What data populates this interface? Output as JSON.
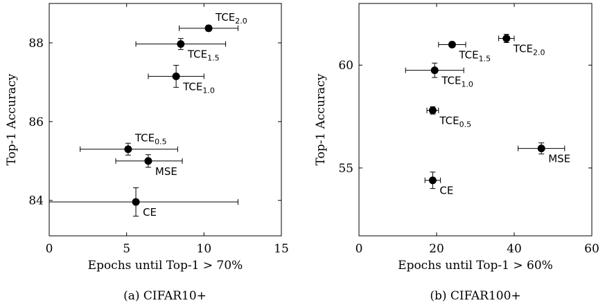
{
  "chart_data": [
    {
      "type": "scatter",
      "caption": "(a) CIFAR10+",
      "xlabel": "Epochs until Top-1 > 70%",
      "ylabel": "Top-1 Accuracy",
      "xlim": [
        0,
        15
      ],
      "ylim": [
        83.1,
        89.0
      ],
      "xticks": [
        "0",
        "5",
        "10",
        "15"
      ],
      "xtick_values": [
        0,
        5,
        10,
        15
      ],
      "yticks": [
        "84",
        "86",
        "88"
      ],
      "ytick_values": [
        84,
        86,
        88
      ],
      "grid": false,
      "points": [
        {
          "base": "TCE",
          "sub": "2.0",
          "x": 10.3,
          "y": 88.37,
          "xerr": [
            8.4,
            12.2
          ],
          "yerr": [
            88.3,
            88.44
          ],
          "label_pos": "above-right"
        },
        {
          "base": "TCE",
          "sub": "1.5",
          "x": 8.5,
          "y": 87.97,
          "xerr": [
            5.6,
            11.4
          ],
          "yerr": [
            87.83,
            88.11
          ],
          "label_pos": "below-right"
        },
        {
          "base": "TCE",
          "sub": "1.0",
          "x": 8.2,
          "y": 87.15,
          "xerr": [
            6.4,
            10.0
          ],
          "yerr": [
            86.87,
            87.43
          ],
          "label_pos": "below-right"
        },
        {
          "base": "TCE",
          "sub": "0.5",
          "x": 5.1,
          "y": 85.3,
          "xerr": [
            2.0,
            8.3
          ],
          "yerr": [
            85.15,
            85.45
          ],
          "label_pos": "above-right"
        },
        {
          "base": "MSE",
          "sub": "",
          "x": 6.4,
          "y": 85.0,
          "xerr": [
            4.3,
            8.6
          ],
          "yerr": [
            84.84,
            85.16
          ],
          "label_pos": "below-right"
        },
        {
          "base": "CE",
          "sub": "",
          "x": 5.6,
          "y": 83.96,
          "xerr": [
            0.0,
            12.2
          ],
          "yerr": [
            83.6,
            84.32
          ],
          "label_pos": "below-right"
        }
      ]
    },
    {
      "type": "scatter",
      "caption": "(b) CIFAR100+",
      "xlabel": "Epochs until Top-1 > 60%",
      "ylabel": "Top-1 Accuracy",
      "xlim": [
        0,
        60
      ],
      "ylim": [
        51.7,
        63.0
      ],
      "xticks": [
        "0",
        "20",
        "40",
        "60"
      ],
      "xtick_values": [
        0,
        20,
        40,
        60
      ],
      "yticks": [
        "55",
        "60"
      ],
      "ytick_values": [
        55,
        60
      ],
      "grid": false,
      "points": [
        {
          "base": "TCE",
          "sub": "2.0",
          "x": 38.0,
          "y": 61.3,
          "xerr": [
            36.0,
            40.0
          ],
          "yerr": [
            61.1,
            61.5
          ],
          "label_pos": "below-right"
        },
        {
          "base": "TCE",
          "sub": "1.5",
          "x": 24.0,
          "y": 61.0,
          "xerr": [
            20.5,
            27.5
          ],
          "yerr": [
            60.88,
            61.12
          ],
          "label_pos": "below-right"
        },
        {
          "base": "TCE",
          "sub": "1.0",
          "x": 19.5,
          "y": 59.75,
          "xerr": [
            12.0,
            27.0
          ],
          "yerr": [
            59.4,
            60.1
          ],
          "label_pos": "below-right"
        },
        {
          "base": "TCE",
          "sub": "0.5",
          "x": 19.0,
          "y": 57.8,
          "xerr": [
            17.5,
            20.5
          ],
          "yerr": [
            57.62,
            57.98
          ],
          "label_pos": "below-right"
        },
        {
          "base": "MSE",
          "sub": "",
          "x": 47.0,
          "y": 55.95,
          "xerr": [
            41.0,
            53.0
          ],
          "yerr": [
            55.68,
            56.22
          ],
          "label_pos": "below-right"
        },
        {
          "base": "CE",
          "sub": "",
          "x": 19.0,
          "y": 54.4,
          "xerr": [
            17.0,
            21.0
          ],
          "yerr": [
            54.0,
            54.8
          ],
          "label_pos": "below-right"
        }
      ]
    }
  ]
}
